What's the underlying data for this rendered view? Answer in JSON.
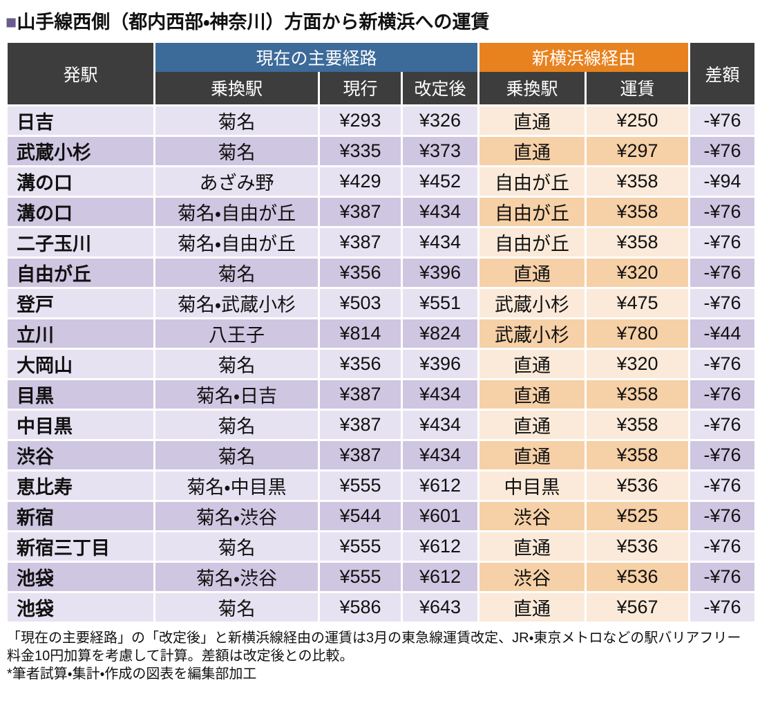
{
  "title": {
    "marker": "■",
    "text": "山手線西側（都内西部・神奈川）方面から新横浜への運賃"
  },
  "chart_data": {
    "type": "table",
    "title": "山手線西側（都内西部・神奈川）方面から新横浜への運賃",
    "column_groups": [
      {
        "label": "現在の主要経路",
        "span": 3,
        "color": "#3c6a99"
      },
      {
        "label": "新横浜線経由",
        "span": 2,
        "color": "#e8821e"
      }
    ],
    "columns": [
      "発駅",
      "乗換駅",
      "現行",
      "改定後",
      "乗換駅",
      "運賃",
      "差額"
    ],
    "rows": [
      [
        "日吉",
        "菊名",
        "¥293",
        "¥326",
        "直通",
        "¥250",
        "-¥76"
      ],
      [
        "武蔵小杉",
        "菊名",
        "¥335",
        "¥373",
        "直通",
        "¥297",
        "-¥76"
      ],
      [
        "溝の口",
        "あざみ野",
        "¥429",
        "¥452",
        "自由が丘",
        "¥358",
        "-¥94"
      ],
      [
        "溝の口",
        "菊名・自由が丘",
        "¥387",
        "¥434",
        "自由が丘",
        "¥358",
        "-¥76"
      ],
      [
        "二子玉川",
        "菊名・自由が丘",
        "¥387",
        "¥434",
        "自由が丘",
        "¥358",
        "-¥76"
      ],
      [
        "自由が丘",
        "菊名",
        "¥356",
        "¥396",
        "直通",
        "¥320",
        "-¥76"
      ],
      [
        "登戸",
        "菊名・武蔵小杉",
        "¥503",
        "¥551",
        "武蔵小杉",
        "¥475",
        "-¥76"
      ],
      [
        "立川",
        "八王子",
        "¥814",
        "¥824",
        "武蔵小杉",
        "¥780",
        "-¥44"
      ],
      [
        "大岡山",
        "菊名",
        "¥356",
        "¥396",
        "直通",
        "¥320",
        "-¥76"
      ],
      [
        "目黒",
        "菊名・日吉",
        "¥387",
        "¥434",
        "直通",
        "¥358",
        "-¥76"
      ],
      [
        "中目黒",
        "菊名",
        "¥387",
        "¥434",
        "直通",
        "¥358",
        "-¥76"
      ],
      [
        "渋谷",
        "菊名",
        "¥387",
        "¥434",
        "直通",
        "¥358",
        "-¥76"
      ],
      [
        "恵比寿",
        "菊名・中目黒",
        "¥555",
        "¥612",
        "中目黒",
        "¥536",
        "-¥76"
      ],
      [
        "新宿",
        "菊名・渋谷",
        "¥544",
        "¥601",
        "渋谷",
        "¥525",
        "-¥76"
      ],
      [
        "新宿三丁目",
        "菊名",
        "¥555",
        "¥612",
        "直通",
        "¥536",
        "-¥76"
      ],
      [
        "池袋",
        "菊名・渋谷",
        "¥555",
        "¥612",
        "渋谷",
        "¥536",
        "-¥76"
      ],
      [
        "池袋",
        "菊名",
        "¥586",
        "¥643",
        "直通",
        "¥567",
        "-¥76"
      ]
    ],
    "layout_hints": {
      "striped_rows": true,
      "purple_columns": [
        0,
        1,
        2,
        3,
        6
      ],
      "peach_columns": [
        4,
        5
      ]
    }
  },
  "notes": {
    "line1": "「現在の主要経路」の「改定後」と新横浜線経由の運賃は3月の東急線運賃改定、JR・東京メトロなどの駅バリアフリー料金10円加算を考慮して計算。差額は改定後との比較。",
    "line2": "*筆者試算・集計・作成の図表を編集部加工"
  },
  "colors": {
    "header_bg": "#3d3d3d",
    "group_current_bg": "#3c6a99",
    "group_shinyoko_bg": "#e8821e",
    "row_purple_light": "#e6e2f1",
    "row_purple_dark": "#cfc6e1",
    "row_peach_light": "#fbead9",
    "row_peach_dark": "#f6d0a6",
    "title_marker": "#6b5b8e"
  }
}
